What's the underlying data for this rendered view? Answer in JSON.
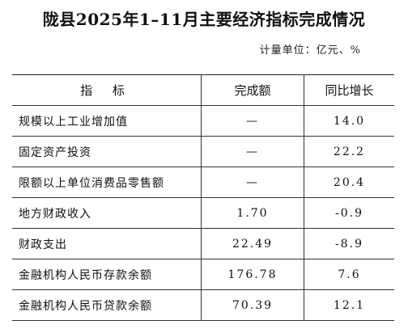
{
  "title": "陇县2025年1–11月主要经济指标完成情况",
  "unit": "计量单位：亿元、%",
  "table": {
    "header": [
      "指 标",
      "完成额",
      "同比增长"
    ],
    "rows": [
      [
        "规模以上工业增加值",
        "—",
        "14.0"
      ],
      [
        "固定资产投资",
        "—",
        "22.2"
      ],
      [
        "限额以上单位消费品零售额",
        "—",
        "20.4"
      ],
      [
        "地方财政收入",
        "1.70",
        "-0.9"
      ],
      [
        "财政支出",
        "22.49",
        "-8.9"
      ],
      [
        "金融机构人民币存款余额",
        "176.78",
        "7.6"
      ],
      [
        "金融机构人民币贷款余额",
        "70.39",
        "12.1"
      ]
    ]
  }
}
